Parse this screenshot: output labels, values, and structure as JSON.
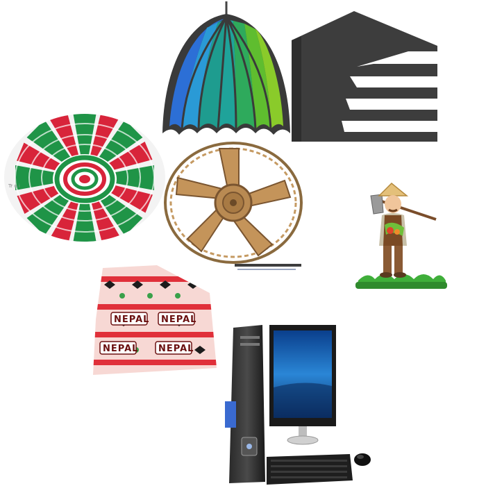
{
  "cap": {
    "label": "NEPAL"
  },
  "basket": {
    "caption": "Tr o i"
  },
  "icons": [
    "umbrella-icon",
    "house-logo-icon",
    "woven-basket-icon",
    "wooden-wheel-icon",
    "farmer-icon",
    "dhaka-topi-cap-icon",
    "desktop-computer-icon"
  ]
}
